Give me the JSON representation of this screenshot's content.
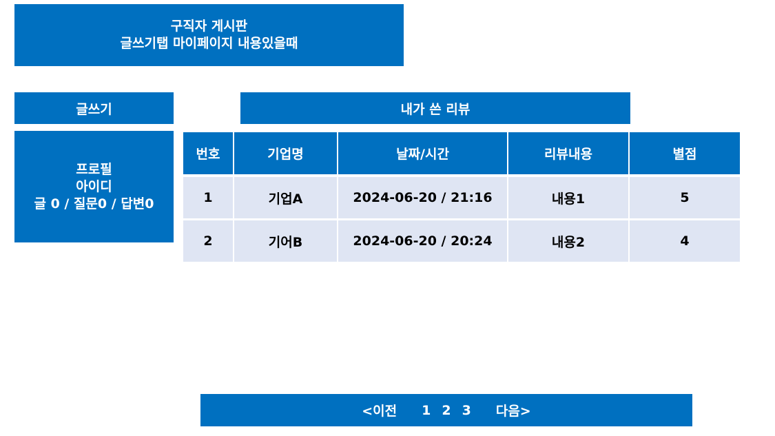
{
  "header": {
    "title_line1": "구직자 게시판",
    "title_line2": "글쓰기탭 마이페이지 내용있을때"
  },
  "sidebar": {
    "write_label": "글쓰기",
    "profile": {
      "line1": "프로필",
      "line2": "아이디",
      "line3": "글 0 / 질문0 / 답변0"
    }
  },
  "main": {
    "section_title": "내가 쓴 리뷰",
    "table": {
      "headers": [
        "번호",
        "기업명",
        "날짜/시간",
        "리뷰내용",
        "별점"
      ],
      "rows": [
        [
          "1",
          "기업A",
          "2024-06-20 / 21:16",
          "내용1",
          "5"
        ],
        [
          "2",
          "기어B",
          "2024-06-20 / 20:24",
          "내용2",
          "4"
        ]
      ]
    }
  },
  "pagination": {
    "prev": "<이전",
    "pages": [
      "1",
      "2",
      "3"
    ],
    "next": "다음>"
  },
  "colors": {
    "primary": "#0070c0",
    "row_background": "#dfe5f3"
  }
}
